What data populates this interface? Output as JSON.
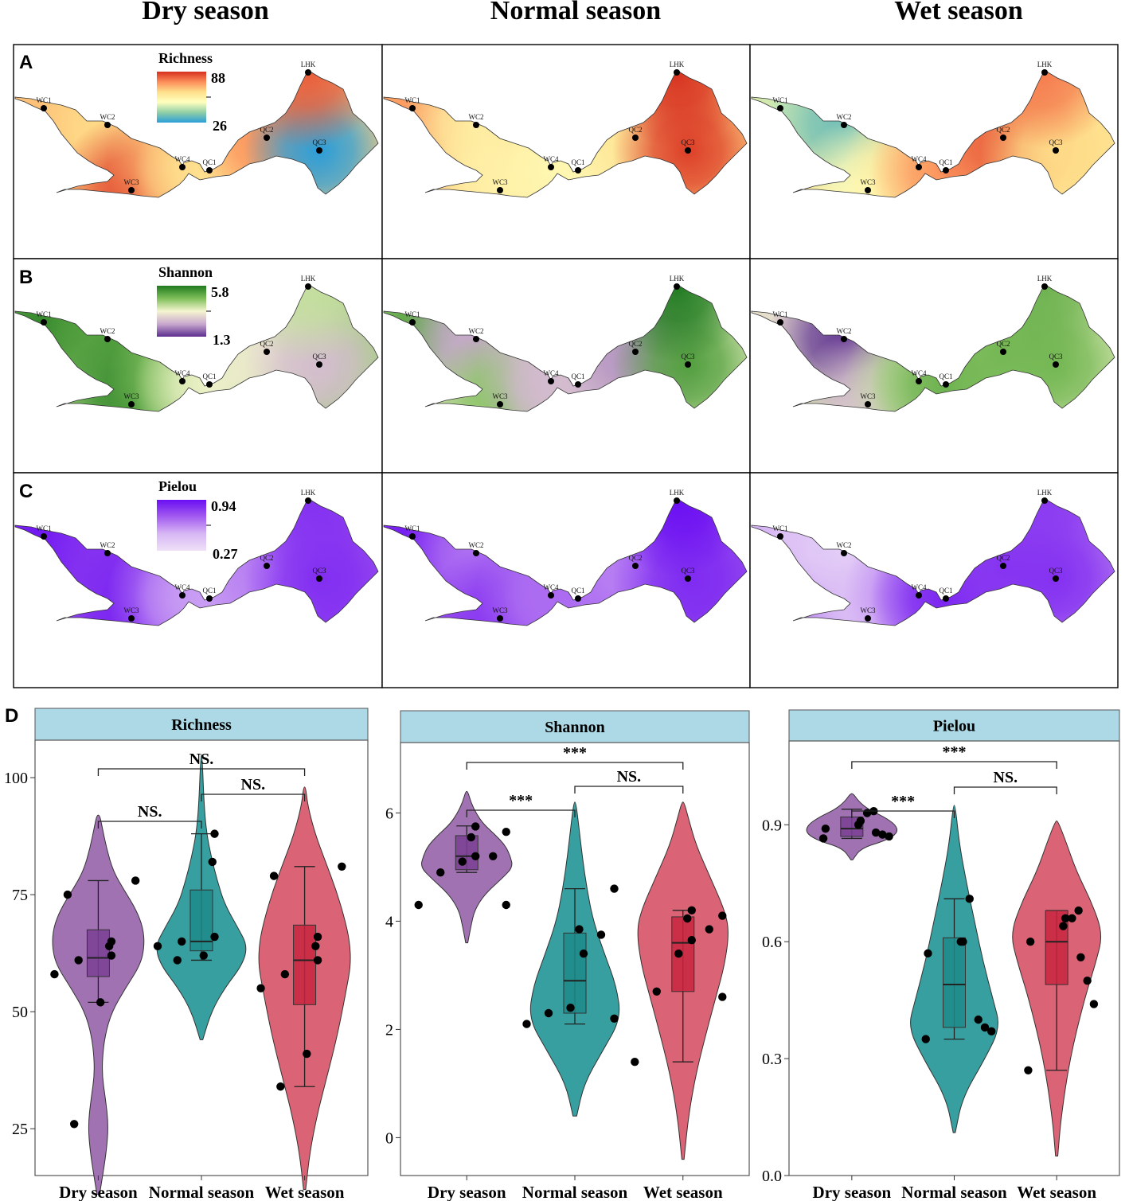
{
  "season_headers": [
    "Dry season",
    "Normal season",
    "Wet season"
  ],
  "panel_letters": [
    "A",
    "B",
    "C",
    "D"
  ],
  "site_labels": [
    "WC1",
    "WC2",
    "WC3",
    "WC4",
    "QC1",
    "QC2",
    "QC3",
    "LHK"
  ],
  "colors": {
    "dry": "#9b6aae",
    "normal": "#2c9a9a",
    "wet": "#d85c6e",
    "dry_box": "#7a3f94",
    "normal_box": "#1f8a8a",
    "wet_box": "#c8243f",
    "strip_bg": "#add8e6"
  },
  "maps": [
    {
      "metric": "Richness",
      "legend_max": "88",
      "legend_min": "26",
      "palette": [
        "#d7301f",
        "#fc8d59",
        "#fee08b",
        "#ffffbf",
        "#91cfa6",
        "#2b9ed8"
      ],
      "seasons": [
        {
          "season": "Dry season",
          "values": {
            "WC1": 68,
            "WC2": 64,
            "WC3": 84,
            "WC4": 68,
            "QC1": 62,
            "QC2": 75,
            "QC3": 26,
            "LHK": 82
          }
        },
        {
          "season": "Normal season",
          "values": {
            "WC1": 74,
            "WC2": 58,
            "WC3": 56,
            "WC4": 56,
            "QC1": 54,
            "QC2": 60,
            "QC3": 86,
            "LHK": 88
          }
        },
        {
          "season": "Wet season",
          "values": {
            "WC1": 45,
            "WC2": 34,
            "WC3": 52,
            "WC4": 60,
            "QC1": 75,
            "QC2": 82,
            "QC3": 64,
            "LHK": 78
          }
        }
      ]
    },
    {
      "metric": "Shannon",
      "legend_max": "5.8",
      "legend_min": "1.3",
      "palette": [
        "#1f7a1f",
        "#7fbf5a",
        "#f5f5d0",
        "#c9a9cf",
        "#5b2d8f"
      ],
      "seasons": [
        {
          "season": "Dry season",
          "values": {
            "WC1": 5.6,
            "WC2": 5.2,
            "WC3": 5.5,
            "WC4": 4.6,
            "QC1": 3.6,
            "QC2": 3.4,
            "QC3": 2.7,
            "LHK": 4.0
          }
        },
        {
          "season": "Normal season",
          "values": {
            "WC1": 5.1,
            "WC2": 2.4,
            "WC3": 4.6,
            "WC4": 2.6,
            "QC1": 2.7,
            "QC2": 2.2,
            "QC3": 5.2,
            "LHK": 5.8
          }
        },
        {
          "season": "Wet season",
          "values": {
            "WC1": 3.2,
            "WC2": 1.4,
            "WC3": 2.8,
            "WC4": 4.1,
            "QC1": 4.9,
            "QC2": 4.8,
            "QC3": 4.8,
            "LHK": 4.9
          }
        }
      ]
    },
    {
      "metric": "Pielou",
      "legend_max": "0.94",
      "legend_min": "0.27",
      "palette": [
        "#6a0ef2",
        "#a35cf0",
        "#d7b7f4",
        "#efe1f8"
      ],
      "seasons": [
        {
          "season": "Dry season",
          "values": {
            "WC1": 0.92,
            "WC2": 0.84,
            "WC3": 0.88,
            "WC4": 0.62,
            "QC1": 0.55,
            "QC2": 0.62,
            "QC3": 0.85,
            "LHK": 0.84
          }
        },
        {
          "season": "Normal season",
          "values": {
            "WC1": 0.9,
            "WC2": 0.66,
            "WC3": 0.82,
            "WC4": 0.66,
            "QC1": 0.68,
            "QC2": 0.62,
            "QC3": 0.86,
            "LHK": 0.94
          }
        },
        {
          "season": "Wet season",
          "values": {
            "WC1": 0.45,
            "WC2": 0.36,
            "WC3": 0.42,
            "WC4": 0.62,
            "QC1": 0.88,
            "QC2": 0.83,
            "QC3": 0.84,
            "LHK": 0.82
          }
        }
      ]
    }
  ],
  "chart_data": [
    {
      "type": "violin",
      "title": "Richness",
      "categories": [
        "Dry season",
        "Normal season",
        "Wet season"
      ],
      "ylim": [
        15,
        108
      ],
      "yticks": [
        25,
        50,
        75,
        100
      ],
      "series": [
        {
          "name": "Dry season",
          "points": [
            26,
            52,
            58,
            61,
            62,
            64,
            65,
            75,
            78
          ],
          "box": {
            "q1": 57.5,
            "median": 61.5,
            "q3": 67.5,
            "lower": 52,
            "upper": 78
          },
          "violin": [
            [
              11,
              0.02
            ],
            [
              20,
              0.12
            ],
            [
              26,
              0.15
            ],
            [
              32,
              0.1
            ],
            [
              36,
              0.06
            ],
            [
              40,
              0.06
            ],
            [
              45,
              0.1
            ],
            [
              50,
              0.2
            ],
            [
              55,
              0.4
            ],
            [
              60,
              0.62
            ],
            [
              64,
              0.68
            ],
            [
              68,
              0.66
            ],
            [
              72,
              0.55
            ],
            [
              76,
              0.38
            ],
            [
              80,
              0.22
            ],
            [
              85,
              0.12
            ],
            [
              90,
              0.05
            ],
            [
              92,
              0.02
            ]
          ]
        },
        {
          "name": "Normal season",
          "points": [
            61,
            62,
            64,
            65,
            66,
            82,
            88
          ],
          "box": {
            "q1": 63,
            "median": 65,
            "q3": 76,
            "lower": 61,
            "upper": 88
          },
          "violin": [
            [
              44,
              0.02
            ],
            [
              50,
              0.15
            ],
            [
              55,
              0.35
            ],
            [
              60,
              0.62
            ],
            [
              64,
              0.7
            ],
            [
              68,
              0.55
            ],
            [
              73,
              0.35
            ],
            [
              78,
              0.24
            ],
            [
              83,
              0.15
            ],
            [
              88,
              0.08
            ],
            [
              94,
              0.04
            ],
            [
              105,
              0.01
            ]
          ]
        },
        {
          "name": "Wet season",
          "points": [
            34,
            41,
            55,
            58,
            61,
            64,
            66,
            79,
            81
          ],
          "box": {
            "q1": 51.5,
            "median": 61,
            "q3": 68.5,
            "lower": 34,
            "upper": 81
          },
          "violin": [
            [
              12,
              0.01
            ],
            [
              20,
              0.05
            ],
            [
              28,
              0.12
            ],
            [
              35,
              0.2
            ],
            [
              42,
              0.28
            ],
            [
              48,
              0.34
            ],
            [
              55,
              0.4
            ],
            [
              60,
              0.44
            ],
            [
              65,
              0.43
            ],
            [
              70,
              0.38
            ],
            [
              76,
              0.3
            ],
            [
              82,
              0.2
            ],
            [
              88,
              0.1
            ],
            [
              94,
              0.03
            ],
            [
              98,
              0.01
            ]
          ]
        }
      ],
      "comparisons": [
        {
          "pair": [
            "Dry season",
            "Normal season"
          ],
          "label": "NS."
        },
        {
          "pair": [
            "Dry season",
            "Wet season"
          ],
          "label": "NS."
        },
        {
          "pair": [
            "Normal season",
            "Wet season"
          ],
          "label": "NS."
        }
      ]
    },
    {
      "type": "violin",
      "title": "Shannon",
      "categories": [
        "Dry season",
        "Normal season",
        "Wet season"
      ],
      "ylim": [
        -0.7,
        7.3
      ],
      "yticks": [
        0,
        2,
        4,
        6
      ],
      "series": [
        {
          "name": "Dry season",
          "points": [
            4.3,
            4.3,
            4.9,
            5.1,
            5.2,
            5.2,
            5.55,
            5.65,
            5.75
          ],
          "box": {
            "q1": 4.95,
            "median": 5.2,
            "q3": 5.58,
            "lower": 4.9,
            "upper": 5.76
          },
          "violin": [
            [
              3.6,
              0.02
            ],
            [
              3.9,
              0.08
            ],
            [
              4.2,
              0.15
            ],
            [
              4.5,
              0.35
            ],
            [
              4.8,
              0.7
            ],
            [
              5.0,
              0.9
            ],
            [
              5.2,
              0.85
            ],
            [
              5.4,
              0.75
            ],
            [
              5.6,
              0.55
            ],
            [
              5.8,
              0.32
            ],
            [
              6.0,
              0.18
            ],
            [
              6.2,
              0.08
            ],
            [
              6.4,
              0.02
            ]
          ]
        },
        {
          "name": "Normal season",
          "points": [
            2.1,
            2.2,
            2.3,
            2.4,
            3.4,
            3.75,
            3.85,
            4.6
          ],
          "box": {
            "q1": 2.3,
            "median": 2.9,
            "q3": 3.78,
            "lower": 2.1,
            "upper": 4.6
          },
          "violin": [
            [
              0.4,
              0.02
            ],
            [
              1.0,
              0.1
            ],
            [
              1.6,
              0.3
            ],
            [
              2.2,
              0.5
            ],
            [
              2.8,
              0.45
            ],
            [
              3.4,
              0.32
            ],
            [
              4.0,
              0.2
            ],
            [
              4.6,
              0.13
            ],
            [
              5.2,
              0.08
            ],
            [
              5.8,
              0.04
            ],
            [
              6.2,
              0.01
            ]
          ]
        },
        {
          "name": "Wet season",
          "points": [
            1.4,
            2.6,
            2.7,
            3.4,
            3.65,
            3.85,
            4.05,
            4.1,
            4.2
          ],
          "box": {
            "q1": 2.7,
            "median": 3.6,
            "q3": 4.08,
            "lower": 1.4,
            "upper": 4.2
          },
          "violin": [
            [
              -0.4,
              0.01
            ],
            [
              0.4,
              0.05
            ],
            [
              1.2,
              0.12
            ],
            [
              2.0,
              0.22
            ],
            [
              2.6,
              0.3
            ],
            [
              3.2,
              0.38
            ],
            [
              3.8,
              0.42
            ],
            [
              4.2,
              0.38
            ],
            [
              4.8,
              0.25
            ],
            [
              5.4,
              0.12
            ],
            [
              5.9,
              0.05
            ],
            [
              6.2,
              0.01
            ]
          ]
        }
      ],
      "comparisons": [
        {
          "pair": [
            "Dry season",
            "Normal season"
          ],
          "label": "***"
        },
        {
          "pair": [
            "Dry season",
            "Wet season"
          ],
          "label": "***"
        },
        {
          "pair": [
            "Normal season",
            "Wet season"
          ],
          "label": "NS."
        }
      ]
    },
    {
      "type": "violin",
      "title": "Pielou",
      "categories": [
        "Dry season",
        "Normal season",
        "Wet season"
      ],
      "ylim": [
        0,
        1.115
      ],
      "yticks": [
        0.0,
        0.3,
        0.6,
        0.9
      ],
      "ytick_labels": [
        "0.0",
        "0.3",
        "0.6",
        "0.9"
      ],
      "series": [
        {
          "name": "Dry season",
          "points": [
            0.865,
            0.87,
            0.875,
            0.88,
            0.89,
            0.9,
            0.91,
            0.93,
            0.935
          ],
          "box": {
            "q1": 0.87,
            "median": 0.89,
            "q3": 0.92,
            "lower": 0.865,
            "upper": 0.94
          },
          "violin": [
            [
              0.81,
              0.02
            ],
            [
              0.84,
              0.2
            ],
            [
              0.86,
              0.75
            ],
            [
              0.88,
              1.0
            ],
            [
              0.9,
              0.95
            ],
            [
              0.92,
              0.7
            ],
            [
              0.94,
              0.35
            ],
            [
              0.96,
              0.15
            ],
            [
              0.98,
              0.03
            ]
          ]
        },
        {
          "name": "Normal season",
          "points": [
            0.35,
            0.37,
            0.38,
            0.4,
            0.57,
            0.6,
            0.6,
            0.71
          ],
          "box": {
            "q1": 0.38,
            "median": 0.49,
            "q3": 0.61,
            "lower": 0.35,
            "upper": 0.71
          },
          "violin": [
            [
              0.11,
              0.01
            ],
            [
              0.2,
              0.08
            ],
            [
              0.3,
              0.3
            ],
            [
              0.38,
              0.45
            ],
            [
              0.45,
              0.38
            ],
            [
              0.55,
              0.28
            ],
            [
              0.65,
              0.2
            ],
            [
              0.75,
              0.12
            ],
            [
              0.85,
              0.05
            ],
            [
              0.95,
              0.01
            ]
          ]
        },
        {
          "name": "Wet season",
          "points": [
            0.27,
            0.44,
            0.5,
            0.56,
            0.6,
            0.64,
            0.66,
            0.66,
            0.68
          ],
          "box": {
            "q1": 0.49,
            "median": 0.6,
            "q3": 0.68,
            "lower": 0.27,
            "upper": 0.68
          },
          "violin": [
            [
              0.05,
              0.01
            ],
            [
              0.15,
              0.04
            ],
            [
              0.3,
              0.12
            ],
            [
              0.45,
              0.25
            ],
            [
              0.55,
              0.36
            ],
            [
              0.62,
              0.42
            ],
            [
              0.7,
              0.32
            ],
            [
              0.78,
              0.18
            ],
            [
              0.86,
              0.08
            ],
            [
              0.91,
              0.01
            ]
          ]
        }
      ],
      "comparisons": [
        {
          "pair": [
            "Dry season",
            "Normal season"
          ],
          "label": "***"
        },
        {
          "pair": [
            "Dry season",
            "Wet season"
          ],
          "label": "***"
        },
        {
          "pair": [
            "Normal season",
            "Wet season"
          ],
          "label": "NS."
        }
      ]
    }
  ]
}
